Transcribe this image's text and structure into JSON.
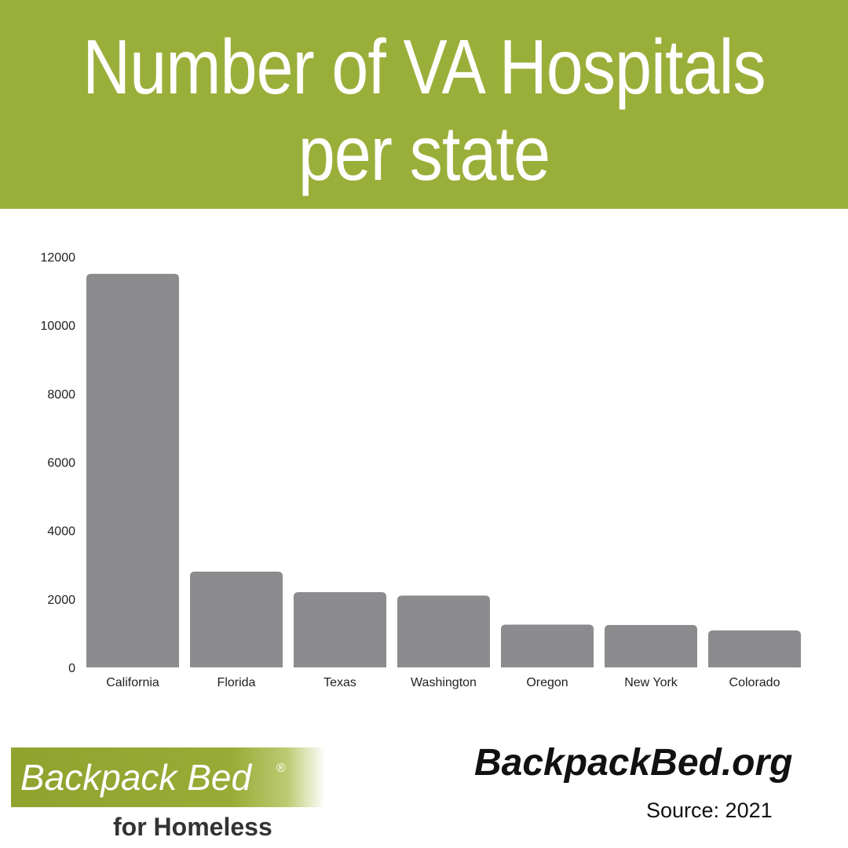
{
  "header": {
    "title_line1": "Number of VA Hospitals",
    "title_line2": "per state",
    "background_color": "#9aaf3a"
  },
  "chart_data": {
    "type": "bar",
    "title": "Number of VA Hospitals per state",
    "xlabel": "",
    "ylabel": "",
    "categories": [
      "California",
      "Florida",
      "Texas",
      "Washington",
      "Oregon",
      "New York",
      "Colorado"
    ],
    "values": [
      11500,
      2800,
      2200,
      2100,
      1250,
      1240,
      1080
    ],
    "ylim": [
      0,
      12000
    ],
    "yticks": [
      0,
      2000,
      4000,
      6000,
      8000,
      10000,
      12000
    ],
    "ytick_labels": [
      "0",
      "2000",
      "4000",
      "6000",
      "8000",
      "10000",
      "12000"
    ],
    "grid": false,
    "legend": "none",
    "bar_color": "#8c8b8d"
  },
  "footer": {
    "brand_name": "Backpack Bed",
    "brand_registered": "®",
    "brand_tagline": "for Homeless",
    "site_url": "BackpackBed.org",
    "source": "Source: 2021",
    "brand_color": "#97ab36"
  }
}
